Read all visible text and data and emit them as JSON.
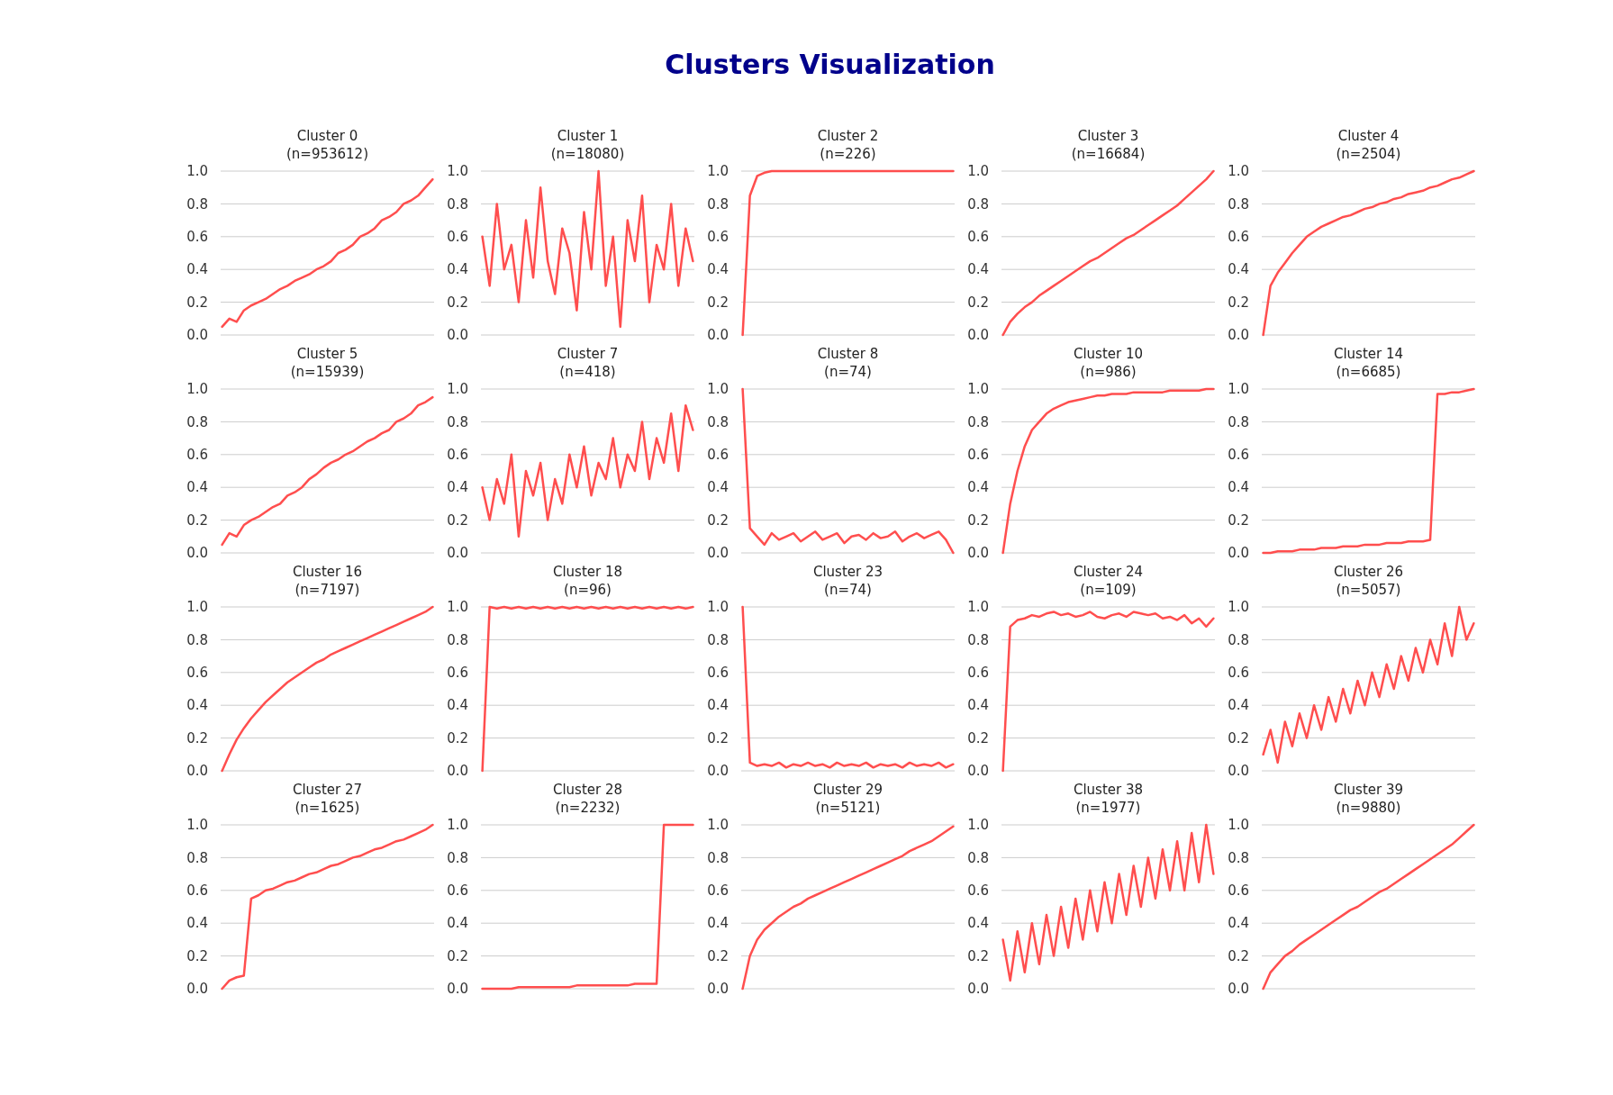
{
  "chart_data": [
    {
      "type": "other",
      "title": "Clusters Visualization"
    },
    {
      "type": "line",
      "title": "Cluster 0\n(n=953612)",
      "categories": [
        null,
        null,
        null,
        null,
        null,
        null,
        null,
        null,
        null,
        null,
        null,
        null,
        null,
        null,
        null,
        null,
        null,
        null,
        null,
        null,
        null,
        null,
        null,
        null,
        null,
        null,
        null,
        null,
        null,
        null
      ],
      "values": [
        0.05,
        0.1,
        0.08,
        0.15,
        0.18,
        0.2,
        0.22,
        0.25,
        0.28,
        0.3,
        0.33,
        0.35,
        0.37,
        0.4,
        0.42,
        0.45,
        0.5,
        0.52,
        0.55,
        0.6,
        0.62,
        0.65,
        0.7,
        0.72,
        0.75,
        0.8,
        0.82,
        0.85,
        0.9,
        0.95
      ],
      "color": "#ff4444",
      "ylim": [
        0,
        1
      ],
      "yticks": [
        {
          "value": 0,
          "label": "0.0"
        },
        {
          "value": 0.2,
          "label": "0.2"
        },
        {
          "value": 0.4,
          "label": "0.4"
        },
        {
          "value": 0.6,
          "label": "0.6"
        },
        {
          "value": 0.8,
          "label": "0.8"
        },
        {
          "value": 1,
          "label": "1.0"
        }
      ],
      "grid": "y",
      "tick_labels": "y"
    },
    {
      "type": "line",
      "title": "Cluster 1\n(n=18080)",
      "categories": [
        null,
        null,
        null,
        null,
        null,
        null,
        null,
        null,
        null,
        null,
        null,
        null,
        null,
        null,
        null,
        null,
        null,
        null,
        null,
        null,
        null,
        null,
        null,
        null,
        null,
        null,
        null,
        null,
        null,
        null
      ],
      "values": [
        0.6,
        0.3,
        0.8,
        0.4,
        0.55,
        0.2,
        0.7,
        0.35,
        0.9,
        0.45,
        0.25,
        0.65,
        0.5,
        0.15,
        0.75,
        0.4,
        1.0,
        0.3,
        0.6,
        0.05,
        0.7,
        0.45,
        0.85,
        0.2,
        0.55,
        0.4,
        0.8,
        0.3,
        0.65,
        0.45
      ],
      "color": "#ff4444",
      "ylim": [
        0,
        1
      ],
      "yticks": [
        {
          "value": 0,
          "label": "0.0"
        },
        {
          "value": 0.2,
          "label": "0.2"
        },
        {
          "value": 0.4,
          "label": "0.4"
        },
        {
          "value": 0.6,
          "label": "0.6"
        },
        {
          "value": 0.8,
          "label": "0.8"
        },
        {
          "value": 1,
          "label": "1.0"
        }
      ],
      "grid": "y",
      "tick_labels": "y"
    },
    {
      "type": "line",
      "title": "Cluster 2\n(n=226)",
      "categories": [
        null,
        null,
        null,
        null,
        null,
        null,
        null,
        null,
        null,
        null,
        null,
        null,
        null,
        null,
        null,
        null,
        null,
        null,
        null,
        null,
        null,
        null,
        null,
        null,
        null,
        null,
        null,
        null,
        null,
        null
      ],
      "values": [
        0,
        0.85,
        0.97,
        0.99,
        1.0,
        1.0,
        1.0,
        1.0,
        1.0,
        1.0,
        1.0,
        1.0,
        1.0,
        1.0,
        1.0,
        1.0,
        1.0,
        1.0,
        1.0,
        1.0,
        1.0,
        1.0,
        1.0,
        1.0,
        1.0,
        1.0,
        1.0,
        1.0,
        1.0,
        1.0
      ],
      "color": "#ff4444",
      "ylim": [
        0,
        1
      ],
      "yticks": [
        {
          "value": 0,
          "label": "0.0"
        },
        {
          "value": 0.2,
          "label": "0.2"
        },
        {
          "value": 0.4,
          "label": "0.4"
        },
        {
          "value": 0.6,
          "label": "0.6"
        },
        {
          "value": 0.8,
          "label": "0.8"
        },
        {
          "value": 1,
          "label": "1.0"
        }
      ],
      "grid": "y",
      "tick_labels": "y"
    },
    {
      "type": "line",
      "title": "Cluster 3\n(n=16684)",
      "categories": [
        null,
        null,
        null,
        null,
        null,
        null,
        null,
        null,
        null,
        null,
        null,
        null,
        null,
        null,
        null,
        null,
        null,
        null,
        null,
        null,
        null,
        null,
        null,
        null,
        null,
        null,
        null,
        null,
        null,
        null
      ],
      "values": [
        0,
        0.08,
        0.13,
        0.17,
        0.2,
        0.24,
        0.27,
        0.3,
        0.33,
        0.36,
        0.39,
        0.42,
        0.45,
        0.47,
        0.5,
        0.53,
        0.56,
        0.59,
        0.61,
        0.64,
        0.67,
        0.7,
        0.73,
        0.76,
        0.79,
        0.83,
        0.87,
        0.91,
        0.95,
        1.0
      ],
      "color": "#ff4444",
      "ylim": [
        0,
        1
      ],
      "yticks": [
        {
          "value": 0,
          "label": "0.0"
        },
        {
          "value": 0.2,
          "label": "0.2"
        },
        {
          "value": 0.4,
          "label": "0.4"
        },
        {
          "value": 0.6,
          "label": "0.6"
        },
        {
          "value": 0.8,
          "label": "0.8"
        },
        {
          "value": 1,
          "label": "1.0"
        }
      ],
      "grid": "y",
      "tick_labels": "y"
    },
    {
      "type": "line",
      "title": "Cluster 4\n(n=2504)",
      "categories": [
        null,
        null,
        null,
        null,
        null,
        null,
        null,
        null,
        null,
        null,
        null,
        null,
        null,
        null,
        null,
        null,
        null,
        null,
        null,
        null,
        null,
        null,
        null,
        null,
        null,
        null,
        null,
        null,
        null,
        null
      ],
      "values": [
        0,
        0.3,
        0.38,
        0.44,
        0.5,
        0.55,
        0.6,
        0.63,
        0.66,
        0.68,
        0.7,
        0.72,
        0.73,
        0.75,
        0.77,
        0.78,
        0.8,
        0.81,
        0.83,
        0.84,
        0.86,
        0.87,
        0.88,
        0.9,
        0.91,
        0.93,
        0.95,
        0.96,
        0.98,
        1.0
      ],
      "color": "#ff4444",
      "ylim": [
        0,
        1
      ],
      "yticks": [
        {
          "value": 0,
          "label": "0.0"
        },
        {
          "value": 0.2,
          "label": "0.2"
        },
        {
          "value": 0.4,
          "label": "0.4"
        },
        {
          "value": 0.6,
          "label": "0.6"
        },
        {
          "value": 0.8,
          "label": "0.8"
        },
        {
          "value": 1,
          "label": "1.0"
        }
      ],
      "grid": "y",
      "tick_labels": "y"
    },
    {
      "type": "line",
      "title": "Cluster 5\n(n=15939)",
      "categories": [
        null,
        null,
        null,
        null,
        null,
        null,
        null,
        null,
        null,
        null,
        null,
        null,
        null,
        null,
        null,
        null,
        null,
        null,
        null,
        null,
        null,
        null,
        null,
        null,
        null,
        null,
        null,
        null,
        null,
        null
      ],
      "values": [
        0.05,
        0.12,
        0.1,
        0.17,
        0.2,
        0.22,
        0.25,
        0.28,
        0.3,
        0.35,
        0.37,
        0.4,
        0.45,
        0.48,
        0.52,
        0.55,
        0.57,
        0.6,
        0.62,
        0.65,
        0.68,
        0.7,
        0.73,
        0.75,
        0.8,
        0.82,
        0.85,
        0.9,
        0.92,
        0.95
      ],
      "color": "#ff4444",
      "ylim": [
        0,
        1
      ],
      "yticks": [
        {
          "value": 0,
          "label": "0.0"
        },
        {
          "value": 0.2,
          "label": "0.2"
        },
        {
          "value": 0.4,
          "label": "0.4"
        },
        {
          "value": 0.6,
          "label": "0.6"
        },
        {
          "value": 0.8,
          "label": "0.8"
        },
        {
          "value": 1,
          "label": "1.0"
        }
      ],
      "grid": "y",
      "tick_labels": "y"
    },
    {
      "type": "line",
      "title": "Cluster 7\n(n=418)",
      "categories": [
        null,
        null,
        null,
        null,
        null,
        null,
        null,
        null,
        null,
        null,
        null,
        null,
        null,
        null,
        null,
        null,
        null,
        null,
        null,
        null,
        null,
        null,
        null,
        null,
        null,
        null,
        null,
        null,
        null,
        null
      ],
      "values": [
        0.4,
        0.2,
        0.45,
        0.3,
        0.6,
        0.1,
        0.5,
        0.35,
        0.55,
        0.2,
        0.45,
        0.3,
        0.6,
        0.4,
        0.65,
        0.35,
        0.55,
        0.45,
        0.7,
        0.4,
        0.6,
        0.5,
        0.8,
        0.45,
        0.7,
        0.55,
        0.85,
        0.5,
        0.9,
        0.75
      ],
      "color": "#ff4444",
      "ylim": [
        0,
        1
      ],
      "yticks": [
        {
          "value": 0,
          "label": "0.0"
        },
        {
          "value": 0.2,
          "label": "0.2"
        },
        {
          "value": 0.4,
          "label": "0.4"
        },
        {
          "value": 0.6,
          "label": "0.6"
        },
        {
          "value": 0.8,
          "label": "0.8"
        },
        {
          "value": 1,
          "label": "1.0"
        }
      ],
      "grid": "y",
      "tick_labels": "y"
    },
    {
      "type": "line",
      "title": "Cluster 8\n(n=74)",
      "categories": [
        null,
        null,
        null,
        null,
        null,
        null,
        null,
        null,
        null,
        null,
        null,
        null,
        null,
        null,
        null,
        null,
        null,
        null,
        null,
        null,
        null,
        null,
        null,
        null,
        null,
        null,
        null,
        null,
        null,
        null
      ],
      "values": [
        1.0,
        0.15,
        0.1,
        0.05,
        0.12,
        0.08,
        0.1,
        0.12,
        0.07,
        0.1,
        0.13,
        0.08,
        0.1,
        0.12,
        0.06,
        0.1,
        0.11,
        0.08,
        0.12,
        0.09,
        0.1,
        0.13,
        0.07,
        0.1,
        0.12,
        0.09,
        0.11,
        0.13,
        0.08,
        0.0
      ],
      "color": "#ff4444",
      "ylim": [
        0,
        1
      ],
      "yticks": [
        {
          "value": 0,
          "label": "0.0"
        },
        {
          "value": 0.2,
          "label": "0.2"
        },
        {
          "value": 0.4,
          "label": "0.4"
        },
        {
          "value": 0.6,
          "label": "0.6"
        },
        {
          "value": 0.8,
          "label": "0.8"
        },
        {
          "value": 1,
          "label": "1.0"
        }
      ],
      "grid": "y",
      "tick_labels": "y"
    },
    {
      "type": "line",
      "title": "Cluster 10\n(n=986)",
      "categories": [
        null,
        null,
        null,
        null,
        null,
        null,
        null,
        null,
        null,
        null,
        null,
        null,
        null,
        null,
        null,
        null,
        null,
        null,
        null,
        null,
        null,
        null,
        null,
        null,
        null,
        null,
        null,
        null,
        null,
        null
      ],
      "values": [
        0,
        0.3,
        0.5,
        0.65,
        0.75,
        0.8,
        0.85,
        0.88,
        0.9,
        0.92,
        0.93,
        0.94,
        0.95,
        0.96,
        0.96,
        0.97,
        0.97,
        0.97,
        0.98,
        0.98,
        0.98,
        0.98,
        0.98,
        0.99,
        0.99,
        0.99,
        0.99,
        0.99,
        1.0,
        1.0
      ],
      "color": "#ff4444",
      "ylim": [
        0,
        1
      ],
      "yticks": [
        {
          "value": 0,
          "label": "0.0"
        },
        {
          "value": 0.2,
          "label": "0.2"
        },
        {
          "value": 0.4,
          "label": "0.4"
        },
        {
          "value": 0.6,
          "label": "0.6"
        },
        {
          "value": 0.8,
          "label": "0.8"
        },
        {
          "value": 1,
          "label": "1.0"
        }
      ],
      "grid": "y",
      "tick_labels": "y"
    },
    {
      "type": "line",
      "title": "Cluster 14\n(n=6685)",
      "categories": [
        null,
        null,
        null,
        null,
        null,
        null,
        null,
        null,
        null,
        null,
        null,
        null,
        null,
        null,
        null,
        null,
        null,
        null,
        null,
        null,
        null,
        null,
        null,
        null,
        null,
        null,
        null,
        null,
        null,
        null
      ],
      "values": [
        0,
        0,
        0.01,
        0.01,
        0.01,
        0.02,
        0.02,
        0.02,
        0.03,
        0.03,
        0.03,
        0.04,
        0.04,
        0.04,
        0.05,
        0.05,
        0.05,
        0.06,
        0.06,
        0.06,
        0.07,
        0.07,
        0.07,
        0.08,
        0.97,
        0.97,
        0.98,
        0.98,
        0.99,
        1.0
      ],
      "color": "#ff4444",
      "ylim": [
        0,
        1
      ],
      "yticks": [
        {
          "value": 0,
          "label": "0.0"
        },
        {
          "value": 0.2,
          "label": "0.2"
        },
        {
          "value": 0.4,
          "label": "0.4"
        },
        {
          "value": 0.6,
          "label": "0.6"
        },
        {
          "value": 0.8,
          "label": "0.8"
        },
        {
          "value": 1,
          "label": "1.0"
        }
      ],
      "grid": "y",
      "tick_labels": "y"
    },
    {
      "type": "line",
      "title": "Cluster 16\n(n=7197)",
      "categories": [
        null,
        null,
        null,
        null,
        null,
        null,
        null,
        null,
        null,
        null,
        null,
        null,
        null,
        null,
        null,
        null,
        null,
        null,
        null,
        null,
        null,
        null,
        null,
        null,
        null,
        null,
        null,
        null,
        null,
        null
      ],
      "values": [
        0,
        0.1,
        0.19,
        0.26,
        0.32,
        0.37,
        0.42,
        0.46,
        0.5,
        0.54,
        0.57,
        0.6,
        0.63,
        0.66,
        0.68,
        0.71,
        0.73,
        0.75,
        0.77,
        0.79,
        0.81,
        0.83,
        0.85,
        0.87,
        0.89,
        0.91,
        0.93,
        0.95,
        0.97,
        1.0
      ],
      "color": "#ff4444",
      "ylim": [
        0,
        1
      ],
      "yticks": [
        {
          "value": 0,
          "label": "0.0"
        },
        {
          "value": 0.2,
          "label": "0.2"
        },
        {
          "value": 0.4,
          "label": "0.4"
        },
        {
          "value": 0.6,
          "label": "0.6"
        },
        {
          "value": 0.8,
          "label": "0.8"
        },
        {
          "value": 1,
          "label": "1.0"
        }
      ],
      "grid": "y",
      "tick_labels": "y"
    },
    {
      "type": "line",
      "title": "Cluster 18\n(n=96)",
      "categories": [
        null,
        null,
        null,
        null,
        null,
        null,
        null,
        null,
        null,
        null,
        null,
        null,
        null,
        null,
        null,
        null,
        null,
        null,
        null,
        null,
        null,
        null,
        null,
        null,
        null,
        null,
        null,
        null,
        null,
        null
      ],
      "values": [
        0,
        1.0,
        0.99,
        1.0,
        0.99,
        1.0,
        0.99,
        1.0,
        0.99,
        1.0,
        0.99,
        1.0,
        0.99,
        1.0,
        0.99,
        1.0,
        0.99,
        1.0,
        0.99,
        1.0,
        0.99,
        1.0,
        0.99,
        1.0,
        0.99,
        1.0,
        0.99,
        1.0,
        0.99,
        1.0
      ],
      "color": "#ff4444",
      "ylim": [
        0,
        1
      ],
      "yticks": [
        {
          "value": 0,
          "label": "0.0"
        },
        {
          "value": 0.2,
          "label": "0.2"
        },
        {
          "value": 0.4,
          "label": "0.4"
        },
        {
          "value": 0.6,
          "label": "0.6"
        },
        {
          "value": 0.8,
          "label": "0.8"
        },
        {
          "value": 1,
          "label": "1.0"
        }
      ],
      "grid": "y",
      "tick_labels": "y"
    },
    {
      "type": "line",
      "title": "Cluster 23\n(n=74)",
      "categories": [
        null,
        null,
        null,
        null,
        null,
        null,
        null,
        null,
        null,
        null,
        null,
        null,
        null,
        null,
        null,
        null,
        null,
        null,
        null,
        null,
        null,
        null,
        null,
        null,
        null,
        null,
        null,
        null,
        null,
        null
      ],
      "values": [
        1.0,
        0.05,
        0.03,
        0.04,
        0.03,
        0.05,
        0.02,
        0.04,
        0.03,
        0.05,
        0.03,
        0.04,
        0.02,
        0.05,
        0.03,
        0.04,
        0.03,
        0.05,
        0.02,
        0.04,
        0.03,
        0.04,
        0.02,
        0.05,
        0.03,
        0.04,
        0.03,
        0.05,
        0.02,
        0.04
      ],
      "color": "#ff4444",
      "ylim": [
        0,
        1
      ],
      "yticks": [
        {
          "value": 0,
          "label": "0.0"
        },
        {
          "value": 0.2,
          "label": "0.2"
        },
        {
          "value": 0.4,
          "label": "0.4"
        },
        {
          "value": 0.6,
          "label": "0.6"
        },
        {
          "value": 0.8,
          "label": "0.8"
        },
        {
          "value": 1,
          "label": "1.0"
        }
      ],
      "grid": "y",
      "tick_labels": "y"
    },
    {
      "type": "line",
      "title": "Cluster 24\n(n=109)",
      "categories": [
        null,
        null,
        null,
        null,
        null,
        null,
        null,
        null,
        null,
        null,
        null,
        null,
        null,
        null,
        null,
        null,
        null,
        null,
        null,
        null,
        null,
        null,
        null,
        null,
        null,
        null,
        null,
        null,
        null,
        null
      ],
      "values": [
        0,
        0.88,
        0.92,
        0.93,
        0.95,
        0.94,
        0.96,
        0.97,
        0.95,
        0.96,
        0.94,
        0.95,
        0.97,
        0.94,
        0.93,
        0.95,
        0.96,
        0.94,
        0.97,
        0.96,
        0.95,
        0.96,
        0.93,
        0.94,
        0.92,
        0.95,
        0.9,
        0.93,
        0.88,
        0.93
      ],
      "color": "#ff4444",
      "ylim": [
        0,
        1
      ],
      "yticks": [
        {
          "value": 0,
          "label": "0.0"
        },
        {
          "value": 0.2,
          "label": "0.2"
        },
        {
          "value": 0.4,
          "label": "0.4"
        },
        {
          "value": 0.6,
          "label": "0.6"
        },
        {
          "value": 0.8,
          "label": "0.8"
        },
        {
          "value": 1,
          "label": "1.0"
        }
      ],
      "grid": "y",
      "tick_labels": "y"
    },
    {
      "type": "line",
      "title": "Cluster 26\n(n=5057)",
      "categories": [
        null,
        null,
        null,
        null,
        null,
        null,
        null,
        null,
        null,
        null,
        null,
        null,
        null,
        null,
        null,
        null,
        null,
        null,
        null,
        null,
        null,
        null,
        null,
        null,
        null,
        null,
        null,
        null,
        null,
        null
      ],
      "values": [
        0.1,
        0.25,
        0.05,
        0.3,
        0.15,
        0.35,
        0.2,
        0.4,
        0.25,
        0.45,
        0.3,
        0.5,
        0.35,
        0.55,
        0.4,
        0.6,
        0.45,
        0.65,
        0.5,
        0.7,
        0.55,
        0.75,
        0.6,
        0.8,
        0.65,
        0.9,
        0.7,
        1.0,
        0.8,
        0.9
      ],
      "color": "#ff4444",
      "ylim": [
        0,
        1
      ],
      "yticks": [
        {
          "value": 0,
          "label": "0.0"
        },
        {
          "value": 0.2,
          "label": "0.2"
        },
        {
          "value": 0.4,
          "label": "0.4"
        },
        {
          "value": 0.6,
          "label": "0.6"
        },
        {
          "value": 0.8,
          "label": "0.8"
        },
        {
          "value": 1,
          "label": "1.0"
        }
      ],
      "grid": "y",
      "tick_labels": "y"
    },
    {
      "type": "line",
      "title": "Cluster 27\n(n=1625)",
      "categories": [
        null,
        null,
        null,
        null,
        null,
        null,
        null,
        null,
        null,
        null,
        null,
        null,
        null,
        null,
        null,
        null,
        null,
        null,
        null,
        null,
        null,
        null,
        null,
        null,
        null,
        null,
        null,
        null,
        null,
        null
      ],
      "values": [
        0,
        0.05,
        0.07,
        0.08,
        0.55,
        0.57,
        0.6,
        0.61,
        0.63,
        0.65,
        0.66,
        0.68,
        0.7,
        0.71,
        0.73,
        0.75,
        0.76,
        0.78,
        0.8,
        0.81,
        0.83,
        0.85,
        0.86,
        0.88,
        0.9,
        0.91,
        0.93,
        0.95,
        0.97,
        1.0
      ],
      "color": "#ff4444",
      "ylim": [
        0,
        1
      ],
      "yticks": [
        {
          "value": 0,
          "label": "0.0"
        },
        {
          "value": 0.2,
          "label": "0.2"
        },
        {
          "value": 0.4,
          "label": "0.4"
        },
        {
          "value": 0.6,
          "label": "0.6"
        },
        {
          "value": 0.8,
          "label": "0.8"
        },
        {
          "value": 1,
          "label": "1.0"
        }
      ],
      "grid": "y",
      "tick_labels": "y"
    },
    {
      "type": "line",
      "title": "Cluster 28\n(n=2232)",
      "categories": [
        null,
        null,
        null,
        null,
        null,
        null,
        null,
        null,
        null,
        null,
        null,
        null,
        null,
        null,
        null,
        null,
        null,
        null,
        null,
        null,
        null,
        null,
        null,
        null,
        null,
        null,
        null,
        null,
        null,
        null
      ],
      "values": [
        0,
        0,
        0,
        0,
        0,
        0.01,
        0.01,
        0.01,
        0.01,
        0.01,
        0.01,
        0.01,
        0.01,
        0.02,
        0.02,
        0.02,
        0.02,
        0.02,
        0.02,
        0.02,
        0.02,
        0.03,
        0.03,
        0.03,
        0.03,
        1.0,
        1.0,
        1.0,
        1.0,
        1.0
      ],
      "color": "#ff4444",
      "ylim": [
        0,
        1
      ],
      "yticks": [
        {
          "value": 0,
          "label": "0.0"
        },
        {
          "value": 0.2,
          "label": "0.2"
        },
        {
          "value": 0.4,
          "label": "0.4"
        },
        {
          "value": 0.6,
          "label": "0.6"
        },
        {
          "value": 0.8,
          "label": "0.8"
        },
        {
          "value": 1,
          "label": "1.0"
        }
      ],
      "grid": "y",
      "tick_labels": "y"
    },
    {
      "type": "line",
      "title": "Cluster 29\n(n=5121)",
      "categories": [
        null,
        null,
        null,
        null,
        null,
        null,
        null,
        null,
        null,
        null,
        null,
        null,
        null,
        null,
        null,
        null,
        null,
        null,
        null,
        null,
        null,
        null,
        null,
        null,
        null,
        null,
        null,
        null,
        null,
        null
      ],
      "values": [
        0,
        0.2,
        0.3,
        0.36,
        0.4,
        0.44,
        0.47,
        0.5,
        0.52,
        0.55,
        0.57,
        0.59,
        0.61,
        0.63,
        0.65,
        0.67,
        0.69,
        0.71,
        0.73,
        0.75,
        0.77,
        0.79,
        0.81,
        0.84,
        0.86,
        0.88,
        0.9,
        0.93,
        0.96,
        0.99
      ],
      "color": "#ff4444",
      "ylim": [
        0,
        1
      ],
      "yticks": [
        {
          "value": 0,
          "label": "0.0"
        },
        {
          "value": 0.2,
          "label": "0.2"
        },
        {
          "value": 0.4,
          "label": "0.4"
        },
        {
          "value": 0.6,
          "label": "0.6"
        },
        {
          "value": 0.8,
          "label": "0.8"
        },
        {
          "value": 1,
          "label": "1.0"
        }
      ],
      "grid": "y",
      "tick_labels": "y"
    },
    {
      "type": "line",
      "title": "Cluster 38\n(n=1977)",
      "categories": [
        null,
        null,
        null,
        null,
        null,
        null,
        null,
        null,
        null,
        null,
        null,
        null,
        null,
        null,
        null,
        null,
        null,
        null,
        null,
        null,
        null,
        null,
        null,
        null,
        null,
        null,
        null,
        null,
        null,
        null
      ],
      "values": [
        0.3,
        0.05,
        0.35,
        0.1,
        0.4,
        0.15,
        0.45,
        0.2,
        0.5,
        0.25,
        0.55,
        0.3,
        0.6,
        0.35,
        0.65,
        0.4,
        0.7,
        0.45,
        0.75,
        0.5,
        0.8,
        0.55,
        0.85,
        0.6,
        0.9,
        0.6,
        0.95,
        0.65,
        1.0,
        0.7
      ],
      "color": "#ff4444",
      "ylim": [
        0,
        1
      ],
      "yticks": [
        {
          "value": 0,
          "label": "0.0"
        },
        {
          "value": 0.2,
          "label": "0.2"
        },
        {
          "value": 0.4,
          "label": "0.4"
        },
        {
          "value": 0.6,
          "label": "0.6"
        },
        {
          "value": 0.8,
          "label": "0.8"
        },
        {
          "value": 1,
          "label": "1.0"
        }
      ],
      "grid": "y",
      "tick_labels": "y"
    },
    {
      "type": "line",
      "title": "Cluster 39\n(n=9880)",
      "categories": [
        null,
        null,
        null,
        null,
        null,
        null,
        null,
        null,
        null,
        null,
        null,
        null,
        null,
        null,
        null,
        null,
        null,
        null,
        null,
        null,
        null,
        null,
        null,
        null,
        null,
        null,
        null,
        null,
        null,
        null
      ],
      "values": [
        0,
        0.1,
        0.15,
        0.2,
        0.23,
        0.27,
        0.3,
        0.33,
        0.36,
        0.39,
        0.42,
        0.45,
        0.48,
        0.5,
        0.53,
        0.56,
        0.59,
        0.61,
        0.64,
        0.67,
        0.7,
        0.73,
        0.76,
        0.79,
        0.82,
        0.85,
        0.88,
        0.92,
        0.96,
        1.0
      ],
      "color": "#ff4444",
      "ylim": [
        0,
        1
      ],
      "yticks": [
        {
          "value": 0,
          "label": "0.0"
        },
        {
          "value": 0.2,
          "label": "0.2"
        },
        {
          "value": 0.4,
          "label": "0.4"
        },
        {
          "value": 0.6,
          "label": "0.6"
        },
        {
          "value": 0.8,
          "label": "0.8"
        },
        {
          "value": 1,
          "label": "1.0"
        }
      ],
      "grid": "y",
      "tick_labels": "y"
    }
  ]
}
